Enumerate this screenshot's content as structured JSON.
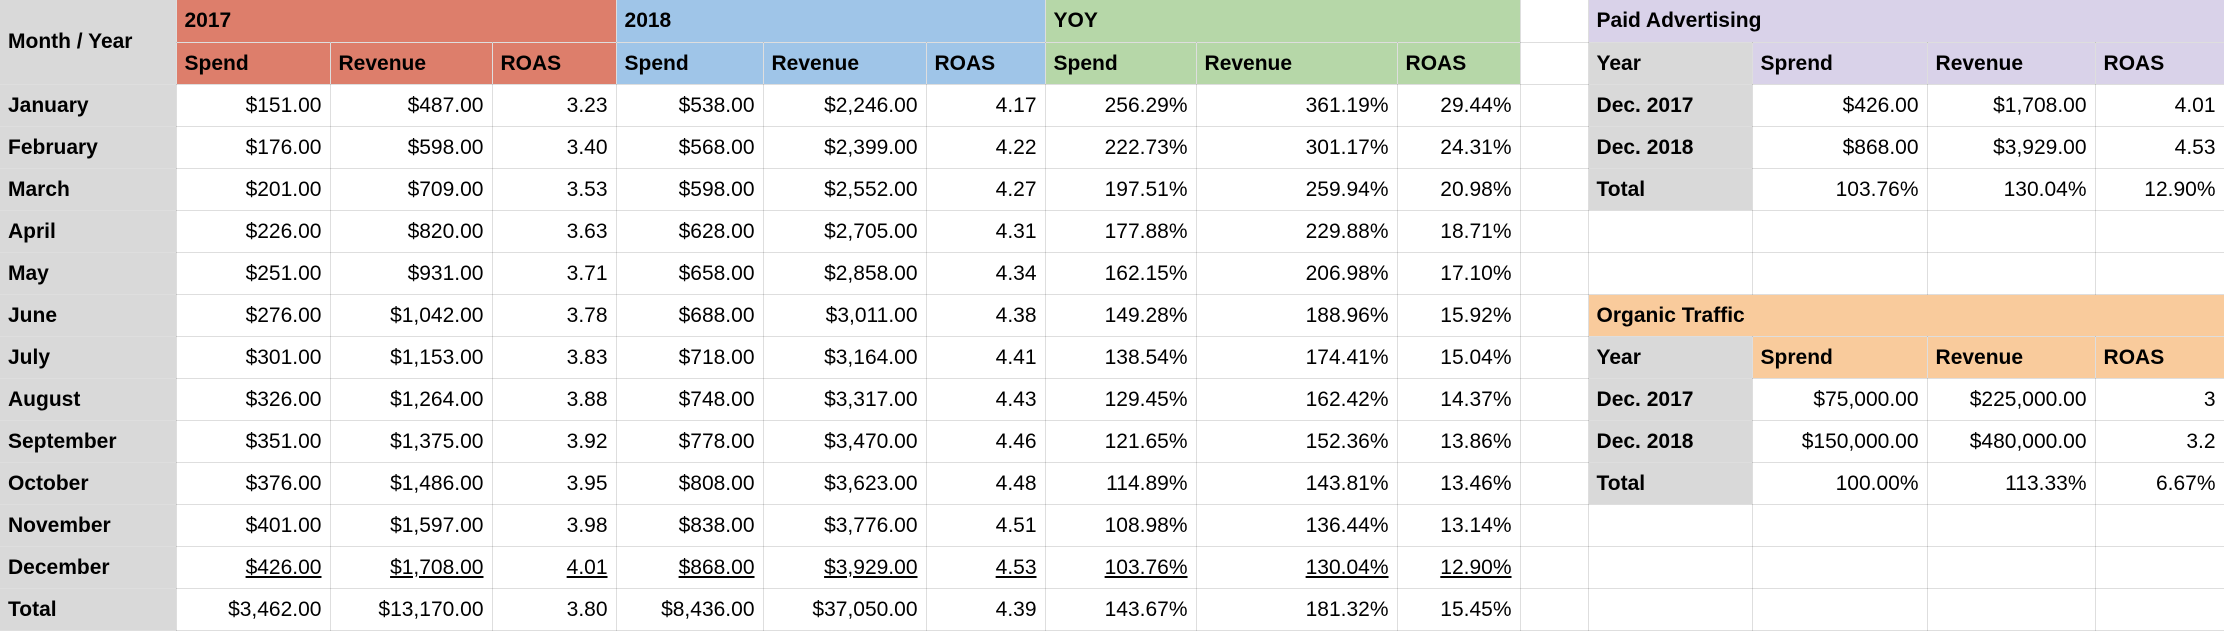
{
  "colors": {
    "group_2017": "#dd7e6b",
    "group_2018": "#9fc5e8",
    "yoy": "#b6d7a8",
    "paid_advertising": "#d9d2e9",
    "organic_traffic": "#f9cb9c",
    "header_gray": "#d9d9d9",
    "gridline": "rgba(0,0,0,0.13)"
  },
  "monthly": {
    "corner_label": "Month / Year",
    "groups": [
      {
        "label": "2017",
        "columns": [
          "Spend",
          "Revenue",
          "ROAS"
        ]
      },
      {
        "label": "2018",
        "columns": [
          "Spend",
          "Revenue",
          "ROAS"
        ]
      },
      {
        "label": "YOY",
        "columns": [
          "Spend",
          "Revenue",
          "ROAS"
        ]
      }
    ],
    "rows": [
      {
        "label": "January",
        "underline": false,
        "values": [
          "$151.00",
          "$487.00",
          "3.23",
          "$538.00",
          "$2,246.00",
          "4.17",
          "256.29%",
          "361.19%",
          "29.44%"
        ]
      },
      {
        "label": "February",
        "underline": false,
        "values": [
          "$176.00",
          "$598.00",
          "3.40",
          "$568.00",
          "$2,399.00",
          "4.22",
          "222.73%",
          "301.17%",
          "24.31%"
        ]
      },
      {
        "label": "March",
        "underline": false,
        "values": [
          "$201.00",
          "$709.00",
          "3.53",
          "$598.00",
          "$2,552.00",
          "4.27",
          "197.51%",
          "259.94%",
          "20.98%"
        ]
      },
      {
        "label": "April",
        "underline": false,
        "values": [
          "$226.00",
          "$820.00",
          "3.63",
          "$628.00",
          "$2,705.00",
          "4.31",
          "177.88%",
          "229.88%",
          "18.71%"
        ]
      },
      {
        "label": "May",
        "underline": false,
        "values": [
          "$251.00",
          "$931.00",
          "3.71",
          "$658.00",
          "$2,858.00",
          "4.34",
          "162.15%",
          "206.98%",
          "17.10%"
        ]
      },
      {
        "label": "June",
        "underline": false,
        "values": [
          "$276.00",
          "$1,042.00",
          "3.78",
          "$688.00",
          "$3,011.00",
          "4.38",
          "149.28%",
          "188.96%",
          "15.92%"
        ]
      },
      {
        "label": "July",
        "underline": false,
        "values": [
          "$301.00",
          "$1,153.00",
          "3.83",
          "$718.00",
          "$3,164.00",
          "4.41",
          "138.54%",
          "174.41%",
          "15.04%"
        ]
      },
      {
        "label": "August",
        "underline": false,
        "values": [
          "$326.00",
          "$1,264.00",
          "3.88",
          "$748.00",
          "$3,317.00",
          "4.43",
          "129.45%",
          "162.42%",
          "14.37%"
        ]
      },
      {
        "label": "September",
        "underline": false,
        "values": [
          "$351.00",
          "$1,375.00",
          "3.92",
          "$778.00",
          "$3,470.00",
          "4.46",
          "121.65%",
          "152.36%",
          "13.86%"
        ]
      },
      {
        "label": "October",
        "underline": false,
        "values": [
          "$376.00",
          "$1,486.00",
          "3.95",
          "$808.00",
          "$3,623.00",
          "4.48",
          "114.89%",
          "143.81%",
          "13.46%"
        ]
      },
      {
        "label": "November",
        "underline": false,
        "values": [
          "$401.00",
          "$1,597.00",
          "3.98",
          "$838.00",
          "$3,776.00",
          "4.51",
          "108.98%",
          "136.44%",
          "13.14%"
        ]
      },
      {
        "label": "December",
        "underline": true,
        "values": [
          "$426.00",
          "$1,708.00",
          "4.01",
          "$868.00",
          "$3,929.00",
          "4.53",
          "103.76%",
          "130.04%",
          "12.90%"
        ]
      },
      {
        "label": "Total",
        "underline": false,
        "values": [
          "$3,462.00",
          "$13,170.00",
          "3.80",
          "$8,436.00",
          "$37,050.00",
          "4.39",
          "143.67%",
          "181.32%",
          "15.45%"
        ]
      }
    ]
  },
  "paid_advertising": {
    "title": "Paid Advertising",
    "columns": [
      "Year",
      "Sprend",
      "Revenue",
      "ROAS"
    ],
    "rows": [
      {
        "label": "Dec. 2017",
        "values": [
          "$426.00",
          "$1,708.00",
          "4.01"
        ]
      },
      {
        "label": "Dec. 2018",
        "values": [
          "$868.00",
          "$3,929.00",
          "4.53"
        ]
      },
      {
        "label": "Total",
        "values": [
          "103.76%",
          "130.04%",
          "12.90%"
        ]
      }
    ]
  },
  "organic_traffic": {
    "title": "Organic Traffic",
    "columns": [
      "Year",
      "Sprend",
      "Revenue",
      "ROAS"
    ],
    "rows": [
      {
        "label": "Dec. 2017",
        "values": [
          "$75,000.00",
          "$225,000.00",
          "3"
        ]
      },
      {
        "label": "Dec. 2018",
        "values": [
          "$150,000.00",
          "$480,000.00",
          "3.2"
        ]
      },
      {
        "label": "Total",
        "values": [
          "100.00%",
          "113.33%",
          "6.67%"
        ]
      }
    ]
  }
}
